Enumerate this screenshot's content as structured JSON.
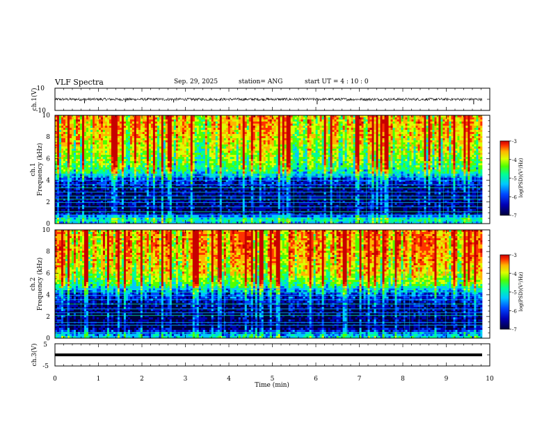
{
  "header": {
    "title": "VLF Spectra",
    "date": "Sep. 29, 2025",
    "station": "station= ANG",
    "start": "start  UT  =   4 : 10 : 0"
  },
  "colors": {
    "spectrum": [
      "#00003c",
      "#0000b4",
      "#0046ff",
      "#00c8ff",
      "#00ff96",
      "#50ff00",
      "#dcff00",
      "#ffb400",
      "#ff3200",
      "#c80000"
    ],
    "trace": "#000000"
  },
  "chart_data": [
    {
      "type": "line",
      "name": "ch1-waveform",
      "ylabel": "ch.1(V)",
      "ylim": [
        -10,
        10
      ],
      "yticks": [
        "10",
        "-10"
      ],
      "xlim": [
        0,
        10
      ],
      "baseline": 0,
      "noise_amplitude": 1.2,
      "spikes": [
        {
          "x": 0.68,
          "y": -3.5
        },
        {
          "x": 1.62,
          "y": -2.5
        },
        {
          "x": 2.73,
          "y": -2.8
        },
        {
          "x": 6.03,
          "y": -4.5
        },
        {
          "x": 9.63,
          "y": -4.5
        }
      ]
    },
    {
      "type": "heatmap",
      "name": "ch1-spectrogram",
      "ylabel": "ch.1\nFrequency (kHz)",
      "ylim": [
        0,
        10
      ],
      "yticks": [
        "0",
        "2",
        "4",
        "6",
        "8",
        "10"
      ],
      "xlim": [
        0,
        9.83
      ],
      "colorbar": {
        "label": "log(PSD)(V²/Hz)",
        "range": [
          -7,
          -3
        ],
        "ticks": [
          "-3",
          "-4",
          "-5",
          "-6",
          "-7"
        ]
      },
      "level_profile": [
        {
          "f": 0.0,
          "level": -5.6
        },
        {
          "f": 0.4,
          "level": -5.1
        },
        {
          "f": 1.0,
          "level": -6.7
        },
        {
          "f": 2.0,
          "level": -6.5
        },
        {
          "f": 3.0,
          "level": -6.6
        },
        {
          "f": 4.2,
          "level": -6.0
        },
        {
          "f": 4.8,
          "level": -5.0
        },
        {
          "f": 6.0,
          "level": -4.6
        },
        {
          "f": 8.0,
          "level": -4.1
        },
        {
          "f": 10.0,
          "level": -3.9
        }
      ],
      "lines_khz": [
        0.3,
        0.55,
        0.8,
        1.1,
        1.55,
        1.95,
        2.25,
        2.55,
        2.9,
        3.3,
        3.6,
        4.0,
        4.35,
        4.55
      ],
      "sferic_density_per_min": 14
    },
    {
      "type": "heatmap",
      "name": "ch2-spectrogram",
      "ylabel": "ch.2\nFrequency (kHz)",
      "ylim": [
        0,
        10
      ],
      "yticks": [
        "0",
        "2",
        "4",
        "6",
        "8",
        "10"
      ],
      "xlim": [
        0,
        9.83
      ],
      "colorbar": {
        "label": "log(PSD)(V²/Hz)",
        "range": [
          -7,
          -3
        ],
        "ticks": [
          "-3",
          "-4",
          "-5",
          "-6",
          "-7"
        ]
      },
      "level_profile": [
        {
          "f": 0.0,
          "level": -5.3
        },
        {
          "f": 0.3,
          "level": -5.6
        },
        {
          "f": 1.0,
          "level": -6.7
        },
        {
          "f": 2.0,
          "level": -6.6
        },
        {
          "f": 3.0,
          "level": -6.5
        },
        {
          "f": 4.2,
          "level": -5.9
        },
        {
          "f": 5.0,
          "level": -4.8
        },
        {
          "f": 6.0,
          "level": -4.2
        },
        {
          "f": 8.0,
          "level": -3.8
        },
        {
          "f": 10.0,
          "level": -3.8
        }
      ],
      "lines_khz": [
        0.5,
        1.2,
        1.45,
        2.1,
        2.35,
        2.7,
        3.15,
        3.55,
        3.95,
        4.25,
        4.6
      ],
      "sferic_density_per_min": 16
    },
    {
      "type": "line",
      "name": "ch3-waveform",
      "ylabel": "ch.3(V)",
      "ylim": [
        -5,
        5
      ],
      "yticks": [
        "5",
        "-5"
      ],
      "xlim": [
        0,
        9.83
      ],
      "constant_value": 0
    }
  ],
  "xaxis": {
    "label": "Time (min)",
    "range": [
      0,
      10
    ],
    "ticks": [
      "0",
      "1",
      "2",
      "3",
      "4",
      "5",
      "6",
      "7",
      "8",
      "9",
      "10"
    ]
  }
}
